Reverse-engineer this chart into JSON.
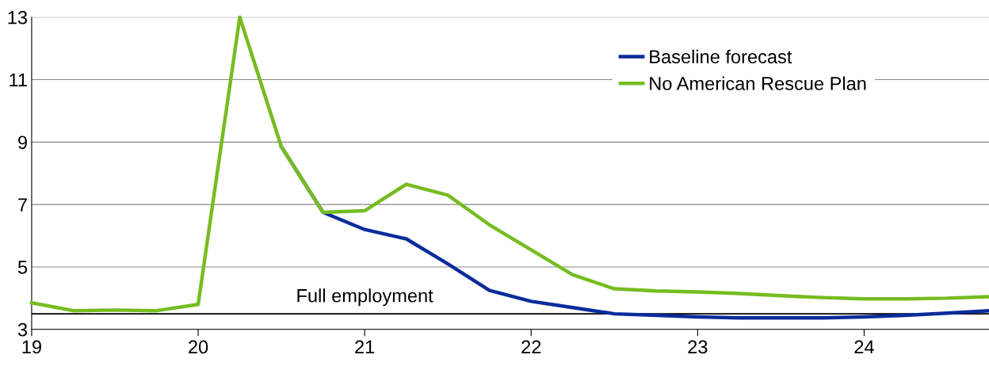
{
  "chart_data": {
    "type": "line",
    "x": [
      19.0,
      19.25,
      19.5,
      19.75,
      20.0,
      20.25,
      20.5,
      20.75,
      21.0,
      21.25,
      21.5,
      21.75,
      22.0,
      22.25,
      22.5,
      22.75,
      23.0,
      23.25,
      23.5,
      23.75,
      24.0,
      24.25,
      24.5,
      24.75
    ],
    "series": [
      {
        "name": "Baseline forecast",
        "color": "#0a2c9a",
        "values": [
          null,
          null,
          null,
          null,
          null,
          null,
          8.85,
          6.75,
          6.2,
          5.9,
          5.1,
          4.25,
          3.9,
          3.7,
          3.5,
          3.45,
          3.4,
          3.37,
          3.37,
          3.37,
          3.4,
          3.45,
          3.52,
          3.6
        ]
      },
      {
        "name": "No American Rescue Plan",
        "color": "#76bc21",
        "values": [
          3.85,
          3.6,
          3.62,
          3.6,
          3.8,
          13.0,
          8.85,
          6.75,
          6.8,
          7.65,
          7.3,
          6.35,
          5.55,
          4.75,
          4.3,
          4.23,
          4.2,
          4.15,
          4.08,
          4.02,
          3.98,
          3.98,
          4.0,
          4.05
        ]
      }
    ],
    "xlim": [
      19,
      24.75
    ],
    "xticks": [
      19,
      20,
      21,
      22,
      23,
      24
    ],
    "ylim": [
      3,
      13
    ],
    "yticks": [
      3,
      5,
      7,
      9,
      11,
      13
    ],
    "ref_lines": [
      {
        "axis": "y",
        "value": 3.5,
        "label": "Full employment",
        "color": "#000000"
      }
    ],
    "grid": "y",
    "legend": "top right",
    "marker": "none",
    "line_style": "solid"
  }
}
